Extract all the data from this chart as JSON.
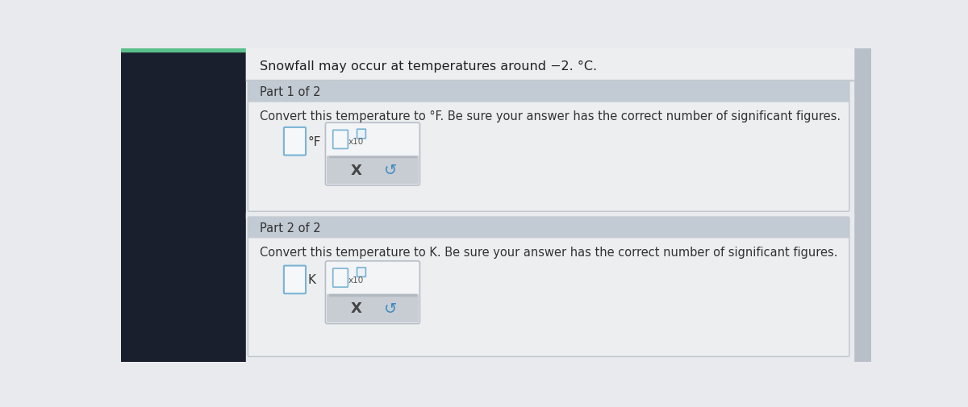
{
  "bg_left_color": "#1a1f2e",
  "main_bg": "#e8eaed",
  "header_text": "Snowfall may occur at temperatures around −2. °C.",
  "header_color": "#222222",
  "header_fontsize": 11.5,
  "part1_header": "Part 1 of 2",
  "part1_header_bg": "#c2cad3",
  "part1_instruction": "Convert this temperature to °F. Be sure your answer has the correct number of significant figures.",
  "part1_label": "°F",
  "part2_header": "Part 2 of 2",
  "part2_header_bg": "#c2cad3",
  "part2_instruction": "Convert this temperature to K. Be sure your answer has the correct number of significant figures.",
  "part2_label": "K",
  "x_symbol": "X",
  "undo_symbol": "↺",
  "text_color": "#333333",
  "scrollbar_color": "#b8bfc8",
  "content_bg": "#e8eaed",
  "header_area_bg": "#eceef0",
  "part_content_bg": "#eceef0",
  "popup_bg": "#f0f2f4",
  "popup_border": "#b8bfc8",
  "popup_bottom_bg": "#c8cdd4",
  "ans_box_border": "#7ab3d4",
  "ans_box_bg": "#f5f7f8",
  "small_box_border": "#7ab3d4",
  "small_box_bg": "#f5f7f8",
  "superscript_box_border": "#7ab3d4",
  "superscript_box_bg": "#eaf3fa"
}
